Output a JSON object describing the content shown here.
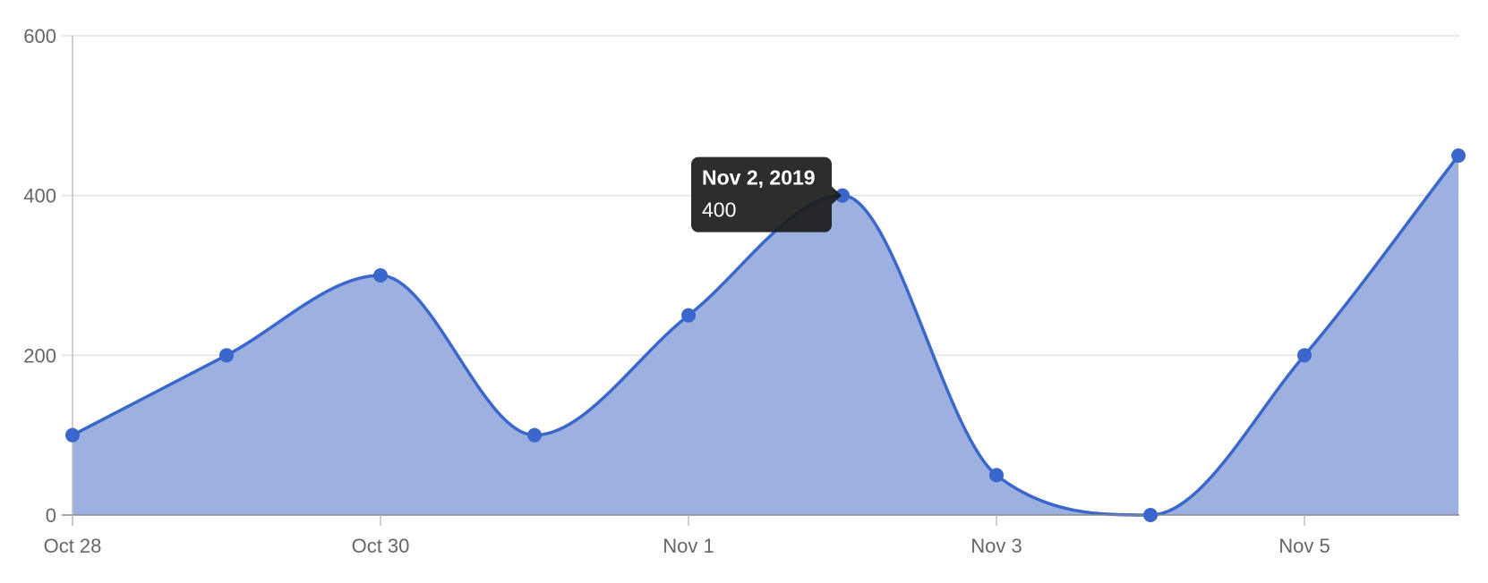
{
  "chart_data": {
    "type": "area",
    "x": [
      "Oct 28",
      "Oct 29",
      "Oct 30",
      "Oct 31",
      "Nov 1",
      "Nov 2",
      "Nov 3",
      "Nov 4",
      "Nov 5",
      "Nov 6"
    ],
    "series": [
      {
        "values": [
          100,
          200,
          300,
          100,
          250,
          400,
          50,
          0,
          200,
          450
        ]
      }
    ],
    "x_tick_labels": [
      "Oct 28",
      "Oct 30",
      "Nov 1",
      "Nov 3",
      "Nov 5"
    ],
    "y_ticks": [
      0,
      200,
      400,
      600
    ],
    "ylim": [
      0,
      600
    ],
    "title": "",
    "xlabel": "",
    "ylabel": "",
    "grid": true,
    "smooth": true,
    "colors": {
      "line": "#3b66cc",
      "fill": "#9db1e1",
      "grid": "#e1e1e1",
      "axis": "#bfbfbf",
      "zero_axis": "#8a8a8a",
      "tooltip_bg": "#1b1b1b"
    },
    "tooltip": {
      "title": "Nov 2, 2019",
      "value": "400",
      "point_index": 5
    }
  }
}
